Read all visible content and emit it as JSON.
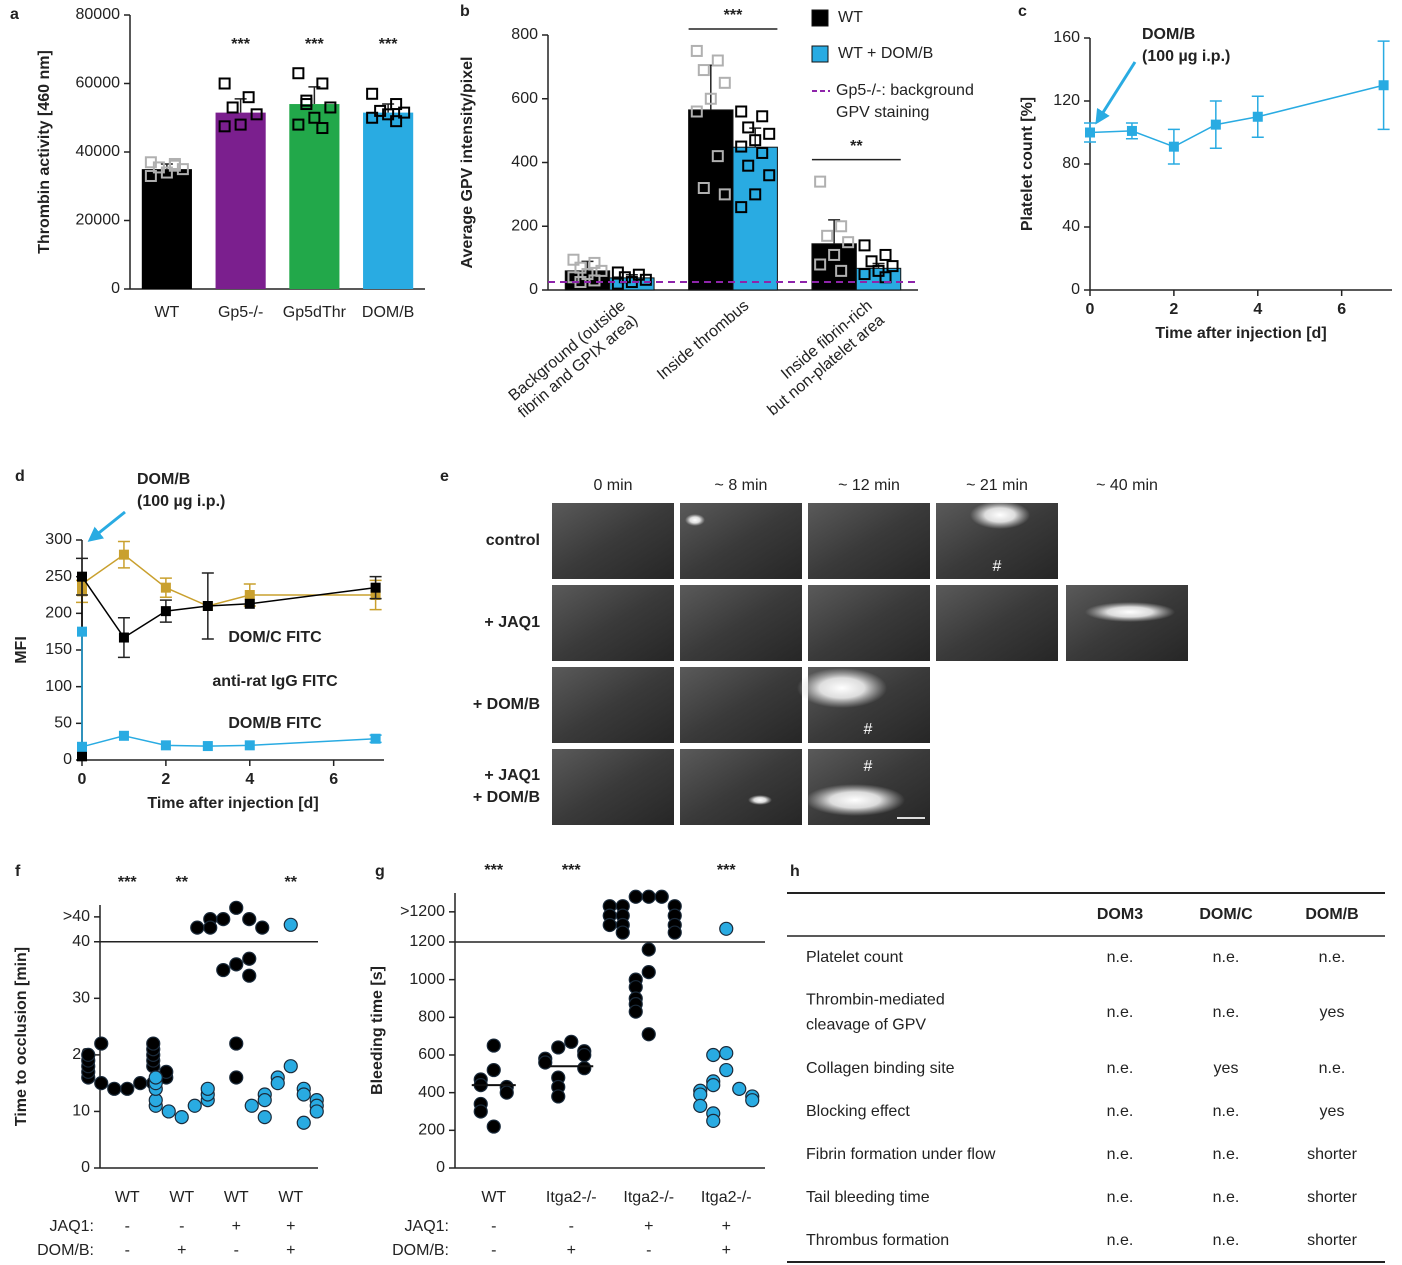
{
  "chart_data": [
    {
      "type": "bar",
      "label": "a",
      "ylabel": "Thrombin activity [460 nm]",
      "categories": [
        "WT",
        "Gp5-/-",
        "Gp5dThr",
        "DOM/B"
      ],
      "values": [
        35000,
        51500,
        54000,
        51500
      ],
      "errors": [
        1500,
        4000,
        5000,
        2500
      ],
      "colors": [
        "#000000",
        "#7b1f8e",
        "#22a84a",
        "#29abe2"
      ],
      "point_colors": [
        "#b0b0b0",
        "#000000",
        "#000000",
        "#000000"
      ],
      "points": [
        [
          37000,
          36000,
          35500,
          35000,
          34000,
          33000,
          36500
        ],
        [
          60000,
          56000,
          53000,
          51000,
          48000,
          47500
        ],
        [
          63000,
          60000,
          55000,
          53000,
          50000,
          48000,
          47000,
          54000
        ],
        [
          57000,
          54000,
          52000,
          51500,
          51000,
          50000,
          49000
        ]
      ],
      "significance": [
        null,
        "***",
        "***",
        "***"
      ],
      "ylim": [
        0,
        80000
      ],
      "yticks": [
        0,
        20000,
        40000,
        60000,
        80000
      ]
    },
    {
      "type": "grouped_bar",
      "label": "b",
      "ylabel": "Average GPV intensity/pixel",
      "categories": [
        [
          "Background (outside",
          "fibrin and GPIX area)"
        ],
        [
          "Inside thrombus"
        ],
        [
          "Inside fibrin-rich",
          "but non-platelet area"
        ]
      ],
      "series": [
        {
          "name": "WT",
          "color": "#000000",
          "point_color": "#b0b0b0",
          "values": [
            60,
            565,
            145
          ],
          "errors": [
            30,
            140,
            75
          ],
          "points": [
            [
              95,
              85,
              70,
              60,
              50,
              40,
              30,
              25
            ],
            [
              750,
              720,
              690,
              650,
              600,
              560,
              420,
              320,
              300
            ],
            [
              340,
              200,
              170,
              150,
              110,
              80,
              60
            ]
          ]
        },
        {
          "name": "WT + DOM/B",
          "color": "#29abe2",
          "point_color": "#000000",
          "values": [
            38,
            448,
            68
          ],
          "errors": [
            10,
            60,
            15
          ],
          "points": [
            [
              55,
              48,
              40,
              32,
              25,
              20
            ],
            [
              560,
              545,
              510,
              490,
              470,
              450,
              430,
              390,
              360,
              300,
              260
            ],
            [
              140,
              110,
              90,
              75,
              60,
              50,
              40
            ]
          ]
        }
      ],
      "reference": {
        "name": [
          "Gp5-/-: background",
          "GPV staining"
        ],
        "value": 25,
        "color": "#8e24aa"
      },
      "significance": [
        null,
        "***",
        "**"
      ],
      "ylim": [
        0,
        800
      ],
      "yticks": [
        0,
        200,
        400,
        600,
        800
      ]
    },
    {
      "type": "line",
      "label": "c",
      "xlabel": "Time after injection [d]",
      "ylabel": "Platelet count [%]",
      "annotation": [
        "DOM/B",
        "(100 µg i.p.)"
      ],
      "x": [
        0,
        1,
        2,
        3,
        4,
        7
      ],
      "series": [
        {
          "color": "#29abe2",
          "values": [
            100,
            101,
            91,
            105,
            110,
            130
          ],
          "errors": [
            6,
            5,
            11,
            15,
            13,
            28
          ]
        }
      ],
      "xlim": [
        0,
        7.2
      ],
      "xticks": [
        0,
        2,
        4,
        6
      ],
      "ylim": [
        0,
        160
      ],
      "yticks": [
        0,
        40,
        80,
        120,
        160
      ]
    },
    {
      "type": "line",
      "label": "d",
      "xlabel": "Time after injection [d]",
      "ylabel": "MFI",
      "annotation": [
        "DOM/B",
        "(100 µg i.p.)"
      ],
      "x": [
        0,
        0,
        1,
        2,
        3,
        4,
        7
      ],
      "series": [
        {
          "name": "DOM/C FITC",
          "color": "#c9a02e",
          "values": [
            230,
            240,
            280,
            235,
            210,
            225,
            225
          ],
          "errors": [
            15,
            null,
            18,
            13,
            null,
            15,
            20
          ]
        },
        {
          "name": "anti-rat IgG FITC",
          "color": "#000000",
          "values": [
            5,
            250,
            167,
            203,
            210,
            213,
            235
          ],
          "errors": [
            null,
            25,
            27,
            15,
            45,
            null,
            15
          ]
        },
        {
          "name": "DOM/B FITC",
          "color": "#29abe2",
          "values": [
            175,
            18,
            33,
            20,
            19,
            20,
            29
          ],
          "errors": [
            null,
            null,
            null,
            null,
            null,
            null,
            5
          ]
        }
      ],
      "xlim": [
        0,
        7.2
      ],
      "xticks": [
        0,
        2,
        4,
        6
      ],
      "ylim": [
        0,
        300
      ],
      "yticks": [
        0,
        50,
        100,
        150,
        200,
        250,
        300
      ]
    },
    {
      "type": "dot",
      "label": "f",
      "ylabel": "Time to occlusion [min]",
      "categories": [
        "WT",
        "WT",
        "WT",
        "WT"
      ],
      "conditions": [
        {
          "name": "JAQ1:",
          "values": [
            "-",
            "-",
            "+",
            "+"
          ]
        },
        {
          "name": "DOM/B:",
          "values": [
            "-",
            "+",
            "-",
            "+"
          ]
        }
      ],
      "colors": [
        "#000000",
        "#29abe2",
        "#000000",
        "#29abe2"
      ],
      "points": [
        [
          14,
          14,
          15,
          15,
          15,
          16,
          16,
          17,
          17,
          18,
          18,
          19,
          19,
          20,
          20,
          21,
          22,
          22
        ],
        [
          9,
          10,
          11,
          11,
          12,
          12,
          13,
          14,
          14,
          15,
          16
        ],
        [
          46,
          44,
          44,
          44,
          42.5,
          42.5,
          42.5,
          36,
          35,
          34,
          37,
          22,
          16
        ],
        [
          43,
          18,
          16,
          15,
          14,
          13,
          13,
          12,
          12,
          11,
          11,
          10,
          9,
          8
        ]
      ],
      "threshold": 40,
      "significance": [
        "***",
        "**",
        null,
        "**"
      ],
      "ylim": [
        0,
        46.5
      ],
      "yticks": [
        0,
        10,
        20,
        30,
        40,
        {
          "value": 44.4,
          "label": ">40"
        }
      ]
    },
    {
      "type": "dot",
      "label": "g",
      "ylabel": "Bleeding time [s]",
      "categories": [
        "WT",
        "Itga2-/-",
        "Itga2-/-",
        "Itga2-/-"
      ],
      "conditions": [
        {
          "name": "JAQ1:",
          "values": [
            "-",
            "-",
            "+",
            "+"
          ]
        },
        {
          "name": "DOM/B:",
          "values": [
            "-",
            "+",
            "-",
            "+"
          ]
        }
      ],
      "colors": [
        "#000000",
        "#000000",
        "#000000",
        "#29abe2"
      ],
      "points": [
        [
          650,
          520,
          470,
          440,
          430,
          400,
          340,
          300,
          220
        ],
        [
          670,
          640,
          620,
          600,
          580,
          560,
          530,
          480,
          430,
          380
        ],
        [
          1440,
          1440,
          1440,
          1390,
          1390,
          1390,
          1340,
          1340,
          1340,
          1290,
          1290,
          1290,
          1250,
          1250,
          1160,
          1040,
          1000,
          960,
          900,
          870,
          830,
          710
        ],
        [
          1270,
          610,
          600,
          520,
          460,
          440,
          420,
          410,
          390,
          380,
          360,
          330,
          290,
          250
        ]
      ],
      "medians": [
        440,
        540,
        null,
        null
      ],
      "threshold": 1200,
      "significance": [
        "***",
        "***",
        null,
        "***"
      ],
      "ylim": [
        0,
        1460
      ],
      "yticks": [
        0,
        200,
        400,
        600,
        800,
        1000,
        1200,
        {
          "value": 1360,
          "label": ">1200"
        }
      ]
    }
  ],
  "panel_e": {
    "label": "e",
    "columns": [
      "0 min",
      "~ 8 min",
      "~ 12 min",
      "~  21 min",
      "~  40 min"
    ],
    "rows": [
      [
        "control"
      ],
      [
        "+ JAQ1"
      ],
      [
        "+ DOM/B"
      ],
      [
        "+ JAQ1",
        "+ DOM/B"
      ]
    ],
    "marker": "#"
  },
  "panel_h": {
    "label": "h",
    "header": [
      "DOM3",
      "DOM/C",
      "DOM/B"
    ],
    "rows": [
      [
        [
          "Platelet count"
        ],
        "n.e.",
        "n.e.",
        "n.e."
      ],
      [
        [
          "Thrombin-mediated",
          "cleavage of GPV"
        ],
        "n.e.",
        "n.e.",
        "yes"
      ],
      [
        [
          "Collagen binding site"
        ],
        "n.e.",
        "yes",
        "n.e."
      ],
      [
        [
          "Blocking effect"
        ],
        "n.e.",
        "n.e.",
        "yes"
      ],
      [
        [
          "Fibrin formation under flow"
        ],
        "n.e.",
        "n.e.",
        "shorter"
      ],
      [
        [
          "Tail bleeding time"
        ],
        "n.e.",
        "n.e.",
        "shorter"
      ],
      [
        [
          "Thrombus formation"
        ],
        "n.e.",
        "n.e.",
        "shorter"
      ]
    ]
  }
}
